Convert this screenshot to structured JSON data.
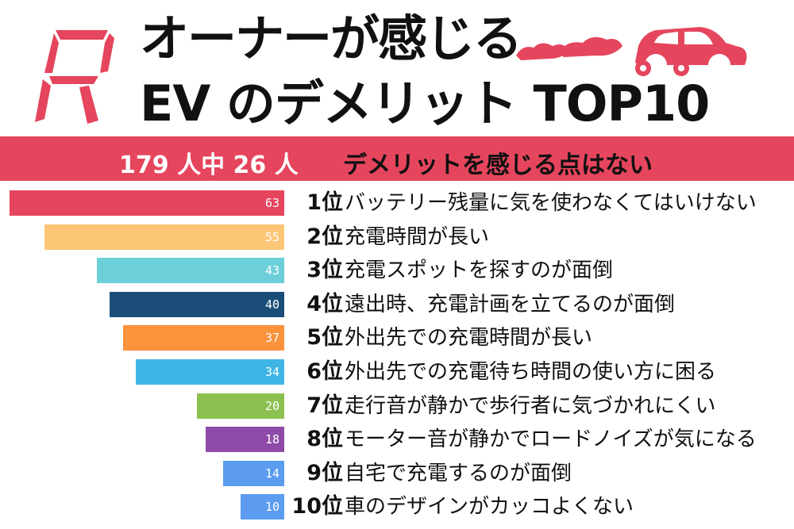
{
  "header": {
    "title_line1": "オーナーが感じる",
    "title_line2": "EV のデメリット TOP10",
    "logo_letter": "R",
    "decoration_icon": "car-icon"
  },
  "banner": {
    "count_text": "179 人中 26 人",
    "message": "デメリットを感じる点はない"
  },
  "chart_data": {
    "type": "bar",
    "orientation": "horizontal",
    "categories": [
      "バッテリー残量に気を使わなくてはいけない",
      "充電時間が長い",
      "充電スポットを探すのが面倒",
      "遠出時、充電計画を立てるのが面倒",
      "外出先での充電時間が長い",
      "外出先での充電待ち時間の使い方に困る",
      "走行音が静かで歩行者に気づかれにくい",
      "モーター音が静かでロードノイズが気になる",
      "自宅で充電するのが面倒",
      "車のデザインがカッコよくない"
    ],
    "ranks": [
      "1位",
      "2位",
      "3位",
      "4位",
      "5位",
      "6位",
      "7位",
      "8位",
      "9位",
      "10位"
    ],
    "values": [
      63,
      55,
      43,
      40,
      37,
      34,
      20,
      18,
      14,
      10
    ],
    "colors": [
      "#e5455d",
      "#fdc676",
      "#6dcfd9",
      "#1a4e79",
      "#fb923c",
      "#3fb5e6",
      "#8cc152",
      "#8e4aa8",
      "#5b9bf0",
      "#5b9bf0"
    ],
    "xlim": [
      0,
      63
    ],
    "grid": false
  }
}
